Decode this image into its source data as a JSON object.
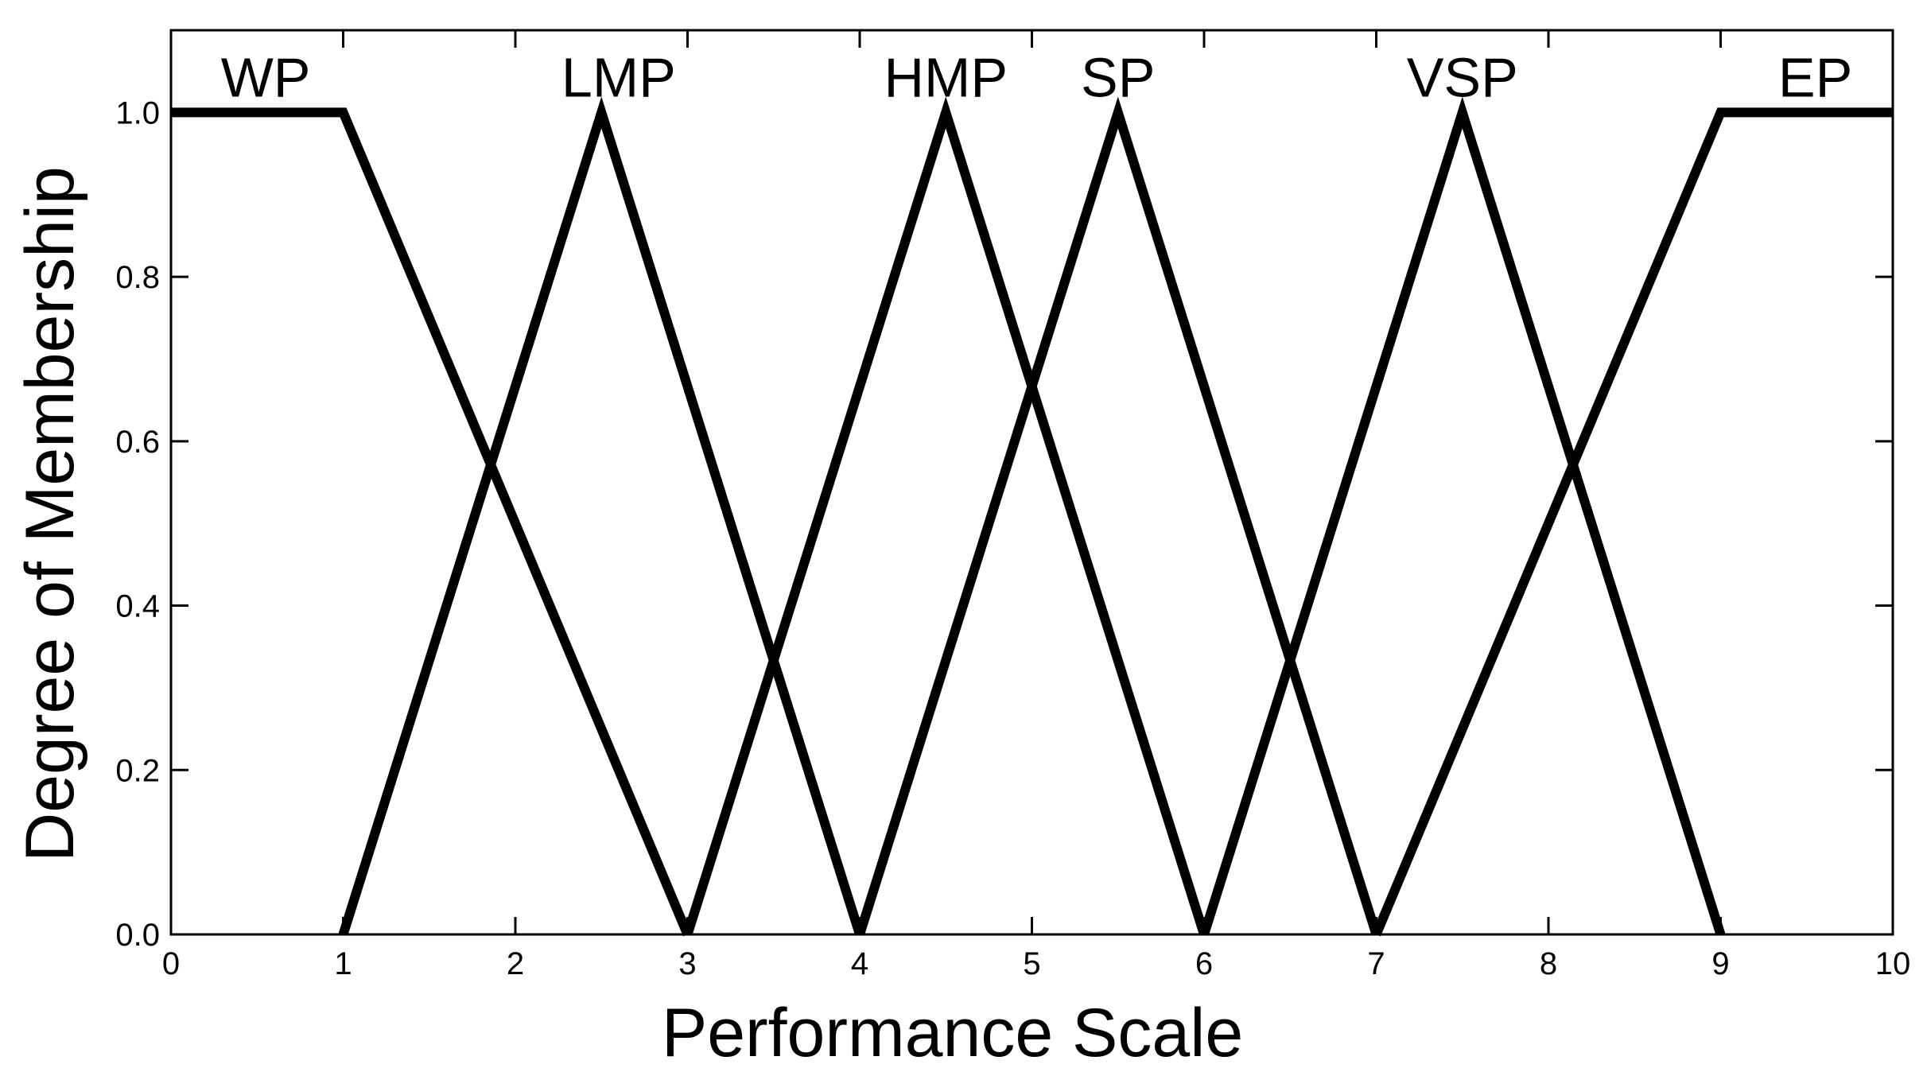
{
  "chart_data": {
    "type": "line",
    "title": "",
    "xlabel": "Performance Scale",
    "ylabel": "Degree of Membership",
    "xlim": [
      0,
      10
    ],
    "ylim": [
      0,
      1.1
    ],
    "x_ticks": [
      0,
      1,
      2,
      3,
      4,
      5,
      6,
      7,
      8,
      9,
      10
    ],
    "x_tick_labels": [
      "0",
      "1",
      "2",
      "3",
      "4",
      "5",
      "6",
      "7",
      "8",
      "9",
      "10"
    ],
    "y_ticks": [
      0,
      0.2,
      0.4,
      0.6,
      0.8,
      1.0
    ],
    "y_tick_labels": [
      "0.0",
      "0.2",
      "0.4",
      "0.6",
      "0.8",
      "1.0"
    ],
    "grid": false,
    "legend": "none",
    "line_color": "#000000",
    "series": [
      {
        "name": "WP",
        "x": [
          0,
          1,
          3
        ],
        "y": [
          1,
          1,
          0
        ]
      },
      {
        "name": "LMP",
        "x": [
          1,
          2.5,
          4
        ],
        "y": [
          0,
          1,
          0
        ]
      },
      {
        "name": "HMP",
        "x": [
          3,
          4.5,
          6
        ],
        "y": [
          0,
          1,
          0
        ]
      },
      {
        "name": "SP",
        "x": [
          4,
          5.5,
          7
        ],
        "y": [
          0,
          1,
          0
        ]
      },
      {
        "name": "VSP",
        "x": [
          6,
          7.5,
          9
        ],
        "y": [
          0,
          1,
          0
        ]
      },
      {
        "name": "EP",
        "x": [
          7,
          9,
          10
        ],
        "y": [
          0,
          1,
          1
        ]
      }
    ],
    "series_label_x": [
      0.55,
      2.6,
      4.5,
      5.5,
      7.5,
      9.55
    ]
  }
}
